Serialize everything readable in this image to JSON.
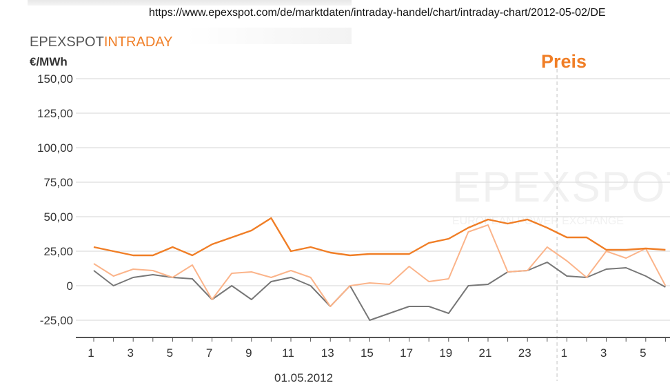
{
  "url": "https://www.epexspot.com/de/marktdaten/intraday-handel/chart/intraday-chart/2012-05-02/DE",
  "brand": {
    "part1": "EPEXSPOT",
    "part2": "INTRADAY"
  },
  "watermark": {
    "main": "EPEXSPOT",
    "sub": "EUROPEAN POWER EXCHANGE"
  },
  "colors": {
    "series_dark_orange": "#f07e26",
    "series_light_orange": "#fbb48a",
    "series_gray": "#777777",
    "gridline": "#d6d6d6",
    "axis": "#555555"
  },
  "chart_data": {
    "type": "line",
    "title": "",
    "ylabel": "€/MWh",
    "series_label": "Preis",
    "date_label": "01.05.2012",
    "ylim": [
      -37.5,
      150
    ],
    "y_ticks": [
      150,
      125,
      100,
      75,
      50,
      25,
      0,
      -25
    ],
    "y_tick_labels": [
      "150,00",
      "125,00",
      "100,00",
      "75,00",
      "50,00",
      "25,00",
      "0",
      "-25,00"
    ],
    "x": [
      1,
      2,
      3,
      4,
      5,
      6,
      7,
      8,
      9,
      10,
      11,
      12,
      13,
      14,
      15,
      16,
      17,
      18,
      19,
      20,
      21,
      22,
      23,
      24,
      1,
      2,
      3,
      4,
      5,
      6
    ],
    "x_tick_labels": [
      "1",
      "3",
      "5",
      "7",
      "9",
      "11",
      "13",
      "15",
      "17",
      "19",
      "21",
      "23",
      "1",
      "3",
      "5"
    ],
    "day_separator_after_hour": 24,
    "series": [
      {
        "color": "#f07e26",
        "values": [
          28,
          25,
          22,
          22,
          28,
          22,
          30,
          35,
          40,
          49,
          25,
          28,
          24,
          22,
          23,
          23,
          23,
          31,
          34,
          42,
          48,
          45,
          48,
          42,
          35,
          35,
          26,
          26,
          27,
          26
        ]
      },
      {
        "color": "#fbb48a",
        "values": [
          16,
          7,
          12,
          11,
          6,
          15,
          -10,
          9,
          10,
          6,
          11,
          6,
          -15,
          0,
          2,
          1,
          14,
          3,
          5,
          39,
          44,
          10,
          11,
          28,
          18,
          6,
          25,
          20,
          27,
          0
        ]
      },
      {
        "color": "#777777",
        "values": [
          11,
          0,
          6,
          8,
          6,
          5,
          -10,
          0,
          -10,
          3,
          6,
          0,
          -15,
          0,
          -25,
          -20,
          -15,
          -15,
          -20,
          0,
          1,
          10,
          11,
          17,
          7,
          6,
          12,
          13,
          7,
          -1
        ]
      }
    ],
    "grid": true,
    "legend": "none"
  }
}
